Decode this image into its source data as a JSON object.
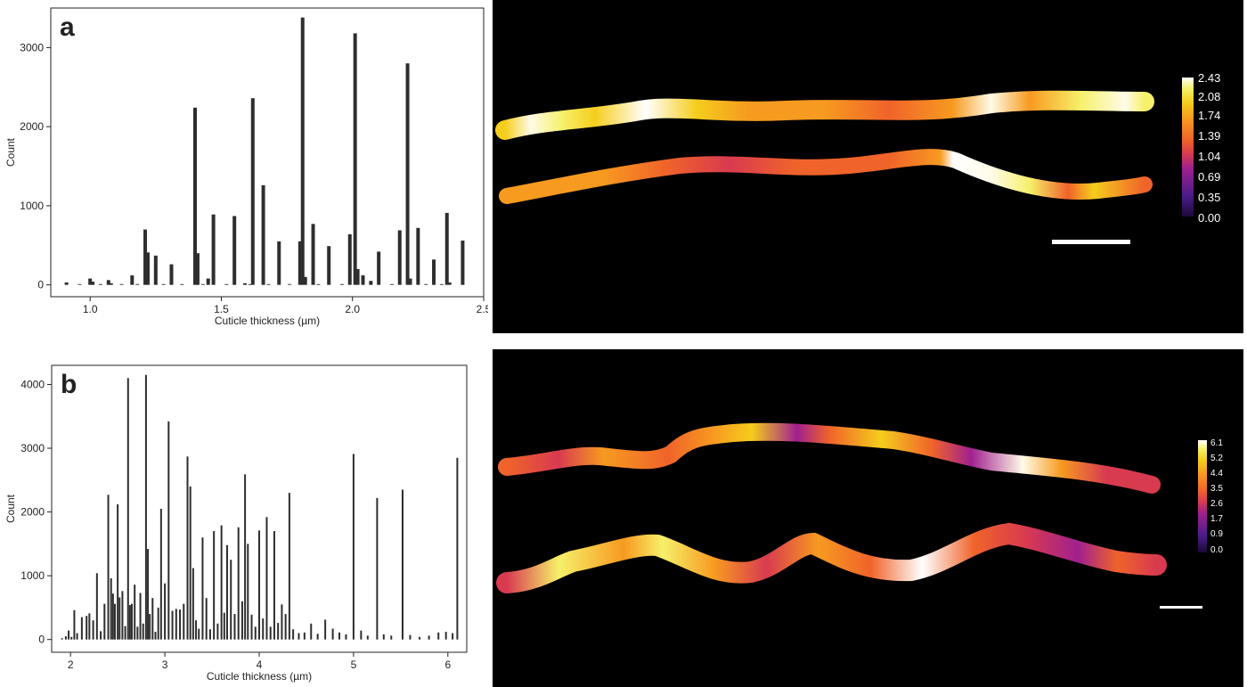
{
  "colors": {
    "bar": "#2e2e2e",
    "axis": "#222222",
    "image_background": "#000000",
    "colormap": [
      "#1a0a3a",
      "#4b1c8a",
      "#a0208e",
      "#d83a50",
      "#f0632a",
      "#f79a20",
      "#f5cd1c",
      "#f6f06a",
      "#fffbe8",
      "#ffffff"
    ]
  },
  "chart_data": [
    {
      "type": "bar",
      "panel_label": "a",
      "xlabel": "Cuticle thickness (µm)",
      "ylabel": "Count",
      "xlim": [
        0.85,
        2.5
      ],
      "ylim": [
        -150,
        3500
      ],
      "xticks": [
        1.0,
        1.5,
        2.0,
        2.5
      ],
      "xtick_labels": [
        "1.0",
        "1.5",
        "2.0",
        "2.5"
      ],
      "yticks": [
        0,
        1000,
        2000,
        3000
      ],
      "ytick_labels": [
        "0",
        "1000",
        "2000",
        "3000"
      ],
      "grid": false,
      "x": [
        0.91,
        0.96,
        1.0,
        1.01,
        1.04,
        1.07,
        1.08,
        1.12,
        1.16,
        1.18,
        1.21,
        1.22,
        1.25,
        1.28,
        1.31,
        1.35,
        1.4,
        1.41,
        1.43,
        1.45,
        1.47,
        1.52,
        1.55,
        1.59,
        1.61,
        1.62,
        1.66,
        1.68,
        1.72,
        1.76,
        1.8,
        1.81,
        1.82,
        1.85,
        1.87,
        1.91,
        1.96,
        1.99,
        2.01,
        2.02,
        2.04,
        2.07,
        2.1,
        2.15,
        2.18,
        2.21,
        2.22,
        2.25,
        2.28,
        2.31,
        2.34,
        2.36,
        2.37,
        2.42
      ],
      "values": [
        30,
        10,
        80,
        40,
        10,
        60,
        20,
        10,
        120,
        10,
        700,
        410,
        370,
        10,
        260,
        10,
        2240,
        400,
        10,
        80,
        890,
        10,
        870,
        20,
        10,
        2360,
        1260,
        10,
        550,
        10,
        550,
        3380,
        100,
        770,
        10,
        490,
        10,
        640,
        3180,
        200,
        120,
        50,
        420,
        10,
        690,
        2800,
        80,
        720,
        10,
        320,
        10,
        910,
        30,
        560
      ]
    },
    {
      "type": "bar",
      "panel_label": "b",
      "xlabel": "Cuticle thickness (µm)",
      "ylabel": "Count",
      "xlim": [
        1.8,
        6.2
      ],
      "ylim": [
        -200,
        4300
      ],
      "xticks": [
        2,
        3,
        4,
        5,
        6
      ],
      "xtick_labels": [
        "2",
        "3",
        "4",
        "5",
        "6"
      ],
      "yticks": [
        0,
        1000,
        2000,
        3000,
        4000
      ],
      "ytick_labels": [
        "0",
        "1000",
        "2000",
        "3000",
        "4000"
      ],
      "grid": false,
      "x": [
        1.91,
        1.95,
        1.98,
        2.01,
        2.04,
        2.07,
        2.12,
        2.17,
        2.2,
        2.24,
        2.28,
        2.32,
        2.36,
        2.4,
        2.43,
        2.45,
        2.47,
        2.5,
        2.52,
        2.55,
        2.58,
        2.61,
        2.63,
        2.65,
        2.68,
        2.71,
        2.74,
        2.77,
        2.8,
        2.82,
        2.84,
        2.87,
        2.9,
        2.93,
        2.96,
        3.0,
        3.04,
        3.08,
        3.12,
        3.16,
        3.2,
        3.24,
        3.27,
        3.3,
        3.33,
        3.36,
        3.4,
        3.44,
        3.48,
        3.52,
        3.56,
        3.6,
        3.63,
        3.66,
        3.7,
        3.74,
        3.78,
        3.82,
        3.85,
        3.88,
        3.92,
        3.96,
        4.0,
        4.04,
        4.08,
        4.12,
        4.16,
        4.2,
        4.24,
        4.28,
        4.32,
        4.36,
        4.42,
        4.48,
        4.55,
        4.62,
        4.7,
        4.78,
        4.85,
        4.92,
        5.0,
        5.08,
        5.15,
        5.25,
        5.32,
        5.4,
        5.52,
        5.6,
        5.7,
        5.8,
        5.9,
        5.98,
        6.05,
        6.1
      ],
      "values": [
        20,
        50,
        140,
        40,
        460,
        100,
        350,
        370,
        410,
        300,
        1040,
        130,
        560,
        2270,
        960,
        720,
        560,
        2120,
        660,
        760,
        210,
        4100,
        540,
        560,
        860,
        200,
        730,
        250,
        4150,
        1420,
        400,
        650,
        120,
        500,
        2050,
        880,
        3420,
        450,
        480,
        470,
        560,
        2870,
        2400,
        1120,
        300,
        170,
        1600,
        650,
        160,
        1700,
        250,
        1790,
        420,
        1480,
        1250,
        400,
        1760,
        600,
        2590,
        1500,
        390,
        200,
        1710,
        330,
        1920,
        200,
        1700,
        260,
        550,
        400,
        2300,
        160,
        100,
        110,
        250,
        90,
        310,
        170,
        110,
        80,
        2910,
        140,
        60,
        2220,
        80,
        60,
        2350,
        70,
        40,
        60,
        110,
        120,
        100,
        2850
      ]
    }
  ],
  "image_panels": [
    {
      "colorbar_labels": [
        "2.43",
        "2.08",
        "1.74",
        "1.39",
        "1.04",
        "0.69",
        "0.35",
        "0.00"
      ]
    },
    {
      "colorbar_labels": [
        "6.1",
        "5.2",
        "4.4",
        "3.5",
        "2.6",
        "1.7",
        "0.9",
        "0.0"
      ]
    }
  ]
}
